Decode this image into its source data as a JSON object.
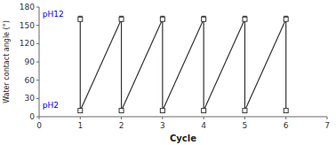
{
  "chart_data": {
    "type": "line",
    "xlabel": "Cycle",
    "ylabel": "Water contact angle (°)",
    "x": [
      1,
      2,
      3,
      4,
      5,
      6
    ],
    "xlim": [
      0,
      7
    ],
    "xticks": [
      0,
      1,
      2,
      3,
      4,
      5,
      6,
      7
    ],
    "ylim": [
      0,
      180
    ],
    "yticks": [
      0,
      30,
      60,
      90,
      120,
      150,
      180
    ],
    "color": "#333333",
    "marker": "square",
    "grid": false,
    "series": [
      {
        "values": [
          160,
          160,
          160,
          160,
          160,
          160
        ],
        "error": [
          5,
          5,
          5,
          5,
          5,
          5
        ]
      },
      {
        "values": [
          10,
          10,
          10,
          10,
          10,
          10
        ]
      }
    ],
    "annotations": [
      {
        "text": "pH12",
        "x": 0.08,
        "y": 162,
        "color": "#0000ee"
      },
      {
        "text": "pH2",
        "x": 0.08,
        "y": 13,
        "color": "#0000ee"
      }
    ]
  }
}
